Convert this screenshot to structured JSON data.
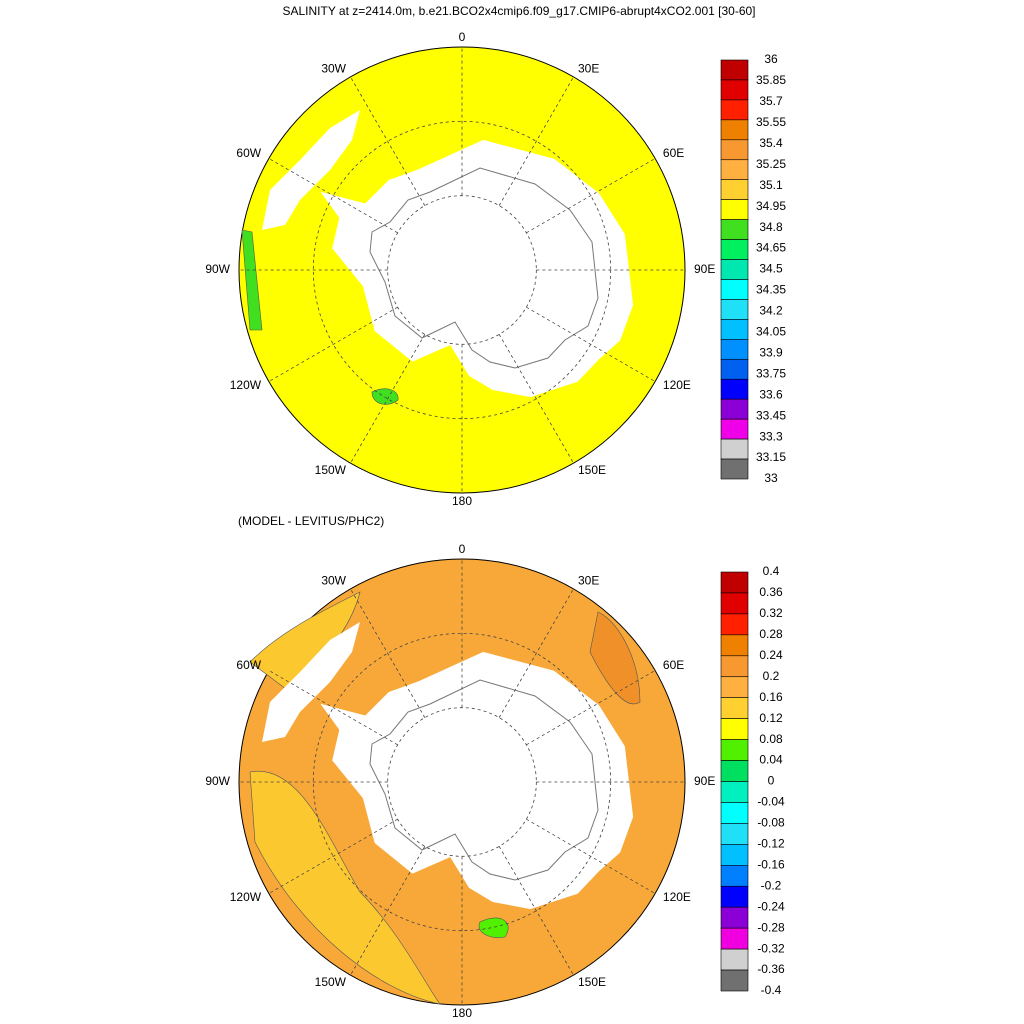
{
  "panels": [
    {
      "title": "SALINITY at z=2414.0m, b.e21.BCO2x4cmip6.f09_g17.CMIP6-abrupt4xCO2.001 [30-60]",
      "lon_labels": [
        "0",
        "30E",
        "60E",
        "90E",
        "120E",
        "150E",
        "180",
        "150W",
        "120W",
        "90W",
        "60W",
        "30W"
      ],
      "fill": "#ffff00",
      "colorbar": {
        "labels": [
          "36",
          "35.85",
          "35.7",
          "35.55",
          "35.4",
          "35.25",
          "35.1",
          "34.95",
          "34.8",
          "34.65",
          "34.5",
          "34.35",
          "34.2",
          "34.05",
          "33.9",
          "33.75",
          "33.6",
          "33.45",
          "33.3",
          "33.15",
          "33"
        ],
        "colors": [
          "#c00000",
          "#e00000",
          "#ff2000",
          "#f08000",
          "#f89830",
          "#ffb040",
          "#ffd030",
          "#ffff00",
          "#40e020",
          "#00f060",
          "#00e8b0",
          "#00ffff",
          "#20e0f8",
          "#00c0ff",
          "#0090ff",
          "#0060f0",
          "#0000ff",
          "#8c00d8",
          "#f000e8",
          "#d0d0d0",
          "#707070"
        ]
      }
    },
    {
      "title": "(MODEL - LEVITUS/PHC2)",
      "lon_labels": [
        "0",
        "30E",
        "60E",
        "90E",
        "120E",
        "150E",
        "180",
        "150W",
        "120W",
        "90W",
        "60W",
        "30W"
      ],
      "fill": "#f8a838",
      "colorbar": {
        "labels": [
          "0.4",
          "0.36",
          "0.32",
          "0.28",
          "0.24",
          "0.2",
          "0.16",
          "0.12",
          "0.08",
          "0.04",
          "0",
          "-0.04",
          "-0.08",
          "-0.12",
          "-0.16",
          "-0.2",
          "-0.24",
          "-0.28",
          "-0.32",
          "-0.36",
          "-0.4"
        ],
        "colors": [
          "#c00000",
          "#e00000",
          "#ff2000",
          "#f08000",
          "#f89830",
          "#ffb040",
          "#ffd030",
          "#ffff00",
          "#50f000",
          "#00e060",
          "#00f0c0",
          "#00ffff",
          "#20e0f8",
          "#00c0ff",
          "#0080ff",
          "#0000ff",
          "#8c00d8",
          "#f000e0",
          "#d0d0d0",
          "#707070"
        ]
      }
    }
  ]
}
